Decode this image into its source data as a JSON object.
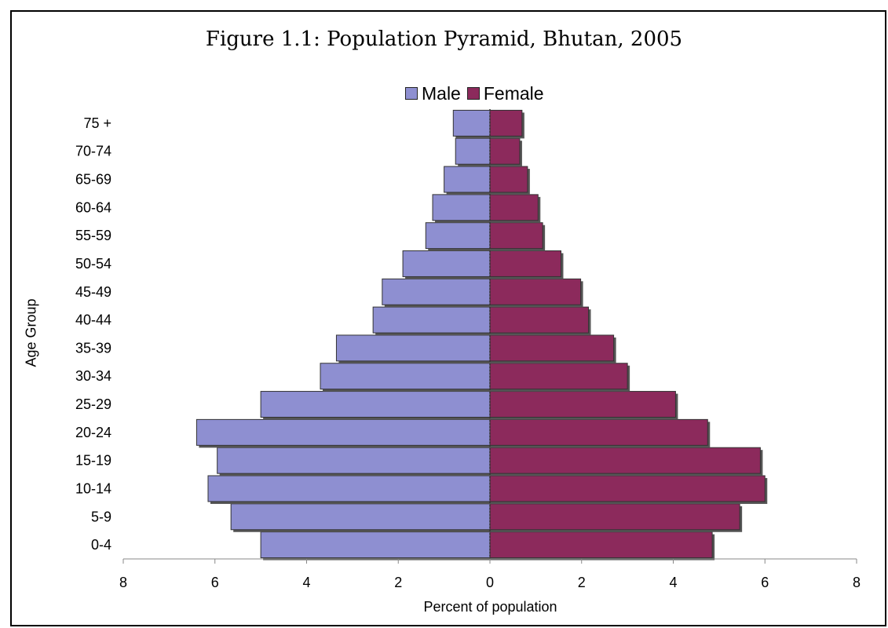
{
  "chart_data": {
    "type": "bar",
    "orientation": "horizontal",
    "subtype": "population-pyramid",
    "title": "Figure 1.1: Population Pyramid, Bhutan, 2005",
    "xlabel": "Percent of population",
    "ylabel": "Age Group",
    "xlim": [
      -8,
      8
    ],
    "x_ticks": [
      -8,
      -6,
      -4,
      -2,
      0,
      2,
      4,
      6,
      8
    ],
    "x_tick_labels": [
      "8",
      "6",
      "4",
      "2",
      "0",
      "2",
      "4",
      "6",
      "8"
    ],
    "legend_position": "top",
    "categories": [
      "0-4",
      "5-9",
      "10-14",
      "15-19",
      "20-24",
      "25-29",
      "30-34",
      "35-39",
      "40-44",
      "45-49",
      "50-54",
      "55-59",
      "60-64",
      "65-69",
      "70-74",
      "75 +"
    ],
    "series": [
      {
        "name": "Male",
        "color": "#8E8FD1",
        "values": [
          5.0,
          5.65,
          6.15,
          5.95,
          6.4,
          5.0,
          3.7,
          3.35,
          2.55,
          2.35,
          1.9,
          1.4,
          1.25,
          1.0,
          0.75,
          0.8
        ]
      },
      {
        "name": "Female",
        "color": "#8C2A5C",
        "values": [
          4.85,
          5.45,
          6.0,
          5.9,
          4.75,
          4.05,
          3.0,
          2.7,
          2.15,
          1.98,
          1.55,
          1.15,
          1.05,
          0.82,
          0.65,
          0.7
        ]
      }
    ],
    "grid": false
  }
}
